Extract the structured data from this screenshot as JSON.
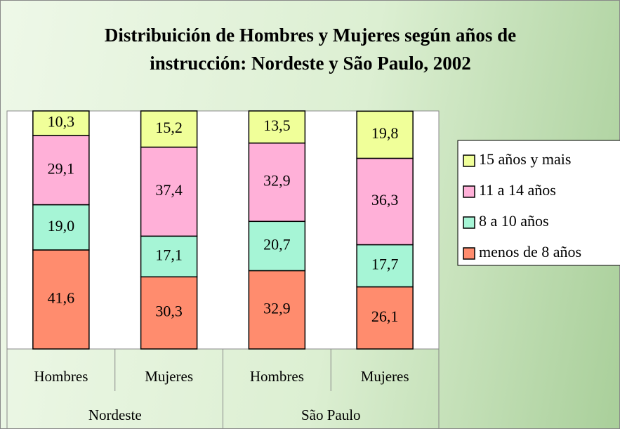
{
  "chart_data": {
    "type": "stacked_bar",
    "title": "Distribuición de Hombres y Mujeres según años de instrucción: Nordeste y São Paulo, 2002",
    "categories": [
      "Hombres",
      "Mujeres",
      "Hombres",
      "Mujeres"
    ],
    "groups": [
      "Nordeste",
      "São Paulo"
    ],
    "ylim": [
      0,
      100
    ],
    "series": [
      {
        "name": "menos de 8 años",
        "color": "#ff8c6e",
        "values": [
          41.6,
          30.3,
          32.9,
          26.1
        ],
        "value_labels": [
          "41,6",
          "30,3",
          "32,9",
          "26,1"
        ]
      },
      {
        "name": "8 a 10 años",
        "color": "#a6f5d6",
        "values": [
          19.0,
          17.1,
          20.7,
          17.7
        ],
        "value_labels": [
          "19,0",
          "17,1",
          "20,7",
          "17,7"
        ]
      },
      {
        "name": "11 a 14 años",
        "color": "#ffb0d8",
        "values": [
          29.1,
          37.4,
          32.9,
          36.3
        ],
        "value_labels": [
          "29,1",
          "37,4",
          "32,9",
          "36,3"
        ]
      },
      {
        "name": "15 años y mais",
        "color": "#f0ff99",
        "values": [
          10.3,
          15.2,
          13.5,
          19.8
        ],
        "value_labels": [
          "10,3",
          "15,2",
          "13,5",
          "19,8"
        ]
      }
    ]
  }
}
